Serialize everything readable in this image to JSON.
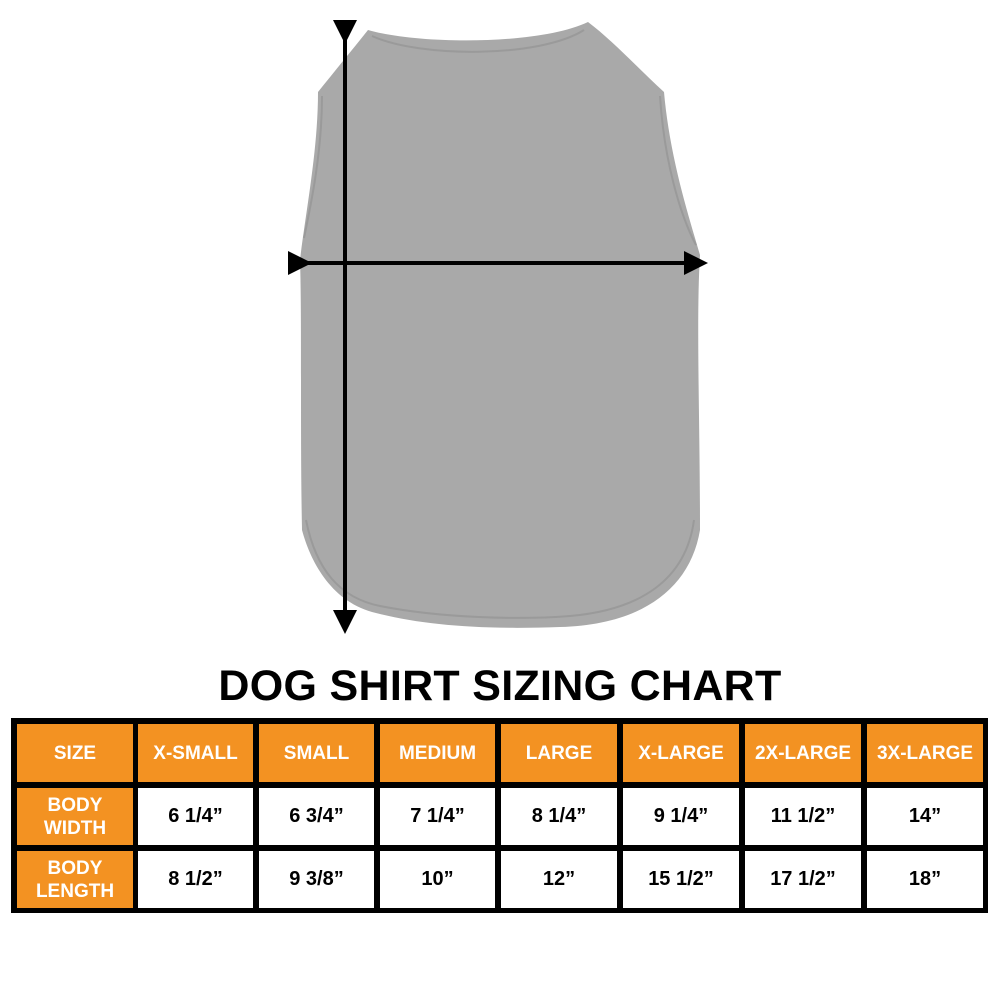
{
  "title": "DOG SHIRT SIZING CHART",
  "colors": {
    "header_bg": "#f39222",
    "shirt": "#a9a9a9",
    "border": "#000000"
  },
  "table": {
    "header": [
      "SIZE",
      "X-SMALL",
      "SMALL",
      "MEDIUM",
      "LARGE",
      "X-LARGE",
      "2X-LARGE",
      "3X-LARGE"
    ],
    "rows": [
      {
        "label": [
          "BODY",
          "WIDTH"
        ],
        "values": [
          "6 1/4”",
          "6 3/4”",
          "7 1/4”",
          "8 1/4”",
          "9 1/4”",
          "11 1/2”",
          "14”"
        ]
      },
      {
        "label": [
          "BODY",
          "LENGTH"
        ],
        "values": [
          "8 1/2”",
          "9 3/8”",
          "10”",
          "12”",
          "15 1/2”",
          "17 1/2”",
          "18”"
        ]
      }
    ]
  }
}
